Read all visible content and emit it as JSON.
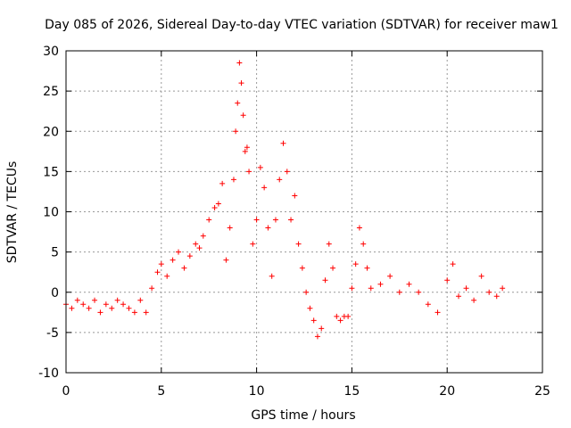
{
  "chart_data": {
    "type": "scatter",
    "title": "Day 085 of 2026, Sidereal Day-to-day VTEC variation (SDTVAR) for receiver maw1",
    "xlabel": "GPS time / hours",
    "ylabel": "SDTVAR / TECUs",
    "xlim": [
      0,
      25
    ],
    "ylim": [
      -10,
      30
    ],
    "x_ticks": [
      0,
      5,
      10,
      15,
      20,
      25
    ],
    "y_ticks": [
      -10,
      -5,
      0,
      5,
      10,
      15,
      20,
      25,
      30
    ],
    "grid": true,
    "marker": "+",
    "series": [
      {
        "name": "maw1",
        "color": "#ff0000",
        "x": [
          0.0,
          0.3,
          0.6,
          0.9,
          1.2,
          1.5,
          1.8,
          2.1,
          2.4,
          2.7,
          3.0,
          3.3,
          3.6,
          3.9,
          4.2,
          4.5,
          4.8,
          5.0,
          5.3,
          5.6,
          5.9,
          6.2,
          6.5,
          6.8,
          7.0,
          7.2,
          7.5,
          7.8,
          8.0,
          8.2,
          8.4,
          8.6,
          8.8,
          8.9,
          9.0,
          9.1,
          9.2,
          9.3,
          9.4,
          9.5,
          9.6,
          9.8,
          10.0,
          10.2,
          10.4,
          10.6,
          10.8,
          11.0,
          11.2,
          11.4,
          11.6,
          11.8,
          12.0,
          12.2,
          12.4,
          12.6,
          12.8,
          13.0,
          13.2,
          13.4,
          13.6,
          13.8,
          14.0,
          14.2,
          14.4,
          14.6,
          14.8,
          15.0,
          15.2,
          15.4,
          15.6,
          15.8,
          16.0,
          16.5,
          17.0,
          17.5,
          18.0,
          18.5,
          19.0,
          19.5,
          20.0,
          20.3,
          20.6,
          21.0,
          21.4,
          21.8,
          22.2,
          22.6,
          22.9
        ],
        "y": [
          -1.5,
          -2.0,
          -1.0,
          -1.5,
          -2.0,
          -1.0,
          -2.5,
          -1.5,
          -2.0,
          -1.0,
          -1.5,
          -2.0,
          -2.5,
          -1.0,
          -2.5,
          0.5,
          2.5,
          3.5,
          2.0,
          4.0,
          5.0,
          3.0,
          4.5,
          6.0,
          5.5,
          7.0,
          9.0,
          10.5,
          11.0,
          13.5,
          4.0,
          8.0,
          14.0,
          20.0,
          23.5,
          28.5,
          26.0,
          22.0,
          17.5,
          18.0,
          15.0,
          6.0,
          9.0,
          15.5,
          13.0,
          8.0,
          2.0,
          9.0,
          14.0,
          18.5,
          15.0,
          9.0,
          12.0,
          6.0,
          3.0,
          0.0,
          -2.0,
          -3.5,
          -5.5,
          -4.5,
          1.5,
          6.0,
          3.0,
          -3.0,
          -3.5,
          -3.0,
          -3.0,
          0.5,
          3.5,
          8.0,
          6.0,
          3.0,
          0.5,
          1.0,
          2.0,
          0.0,
          1.0,
          0.0,
          -1.5,
          -2.5,
          1.5,
          3.5,
          -0.5,
          0.5,
          -1.0,
          2.0,
          0.0,
          -0.5,
          0.5
        ]
      }
    ]
  }
}
